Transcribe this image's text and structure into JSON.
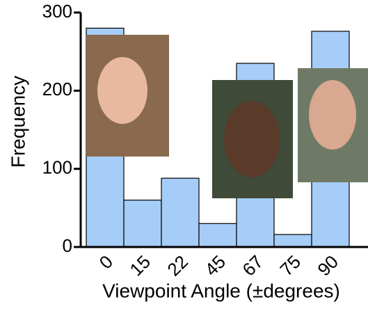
{
  "chart_data": {
    "type": "bar",
    "xlabel": "Viewpoint Angle (±degrees)",
    "ylabel": "Frequency",
    "categories": [
      "0",
      "15",
      "22",
      "45",
      "67",
      "75",
      "90"
    ],
    "values": [
      280,
      60,
      88,
      30,
      235,
      16,
      276
    ],
    "color": "#a6cdf7",
    "ylim": [
      0,
      300
    ],
    "yticks": [
      0,
      100,
      200,
      300
    ],
    "grid": false
  }
}
